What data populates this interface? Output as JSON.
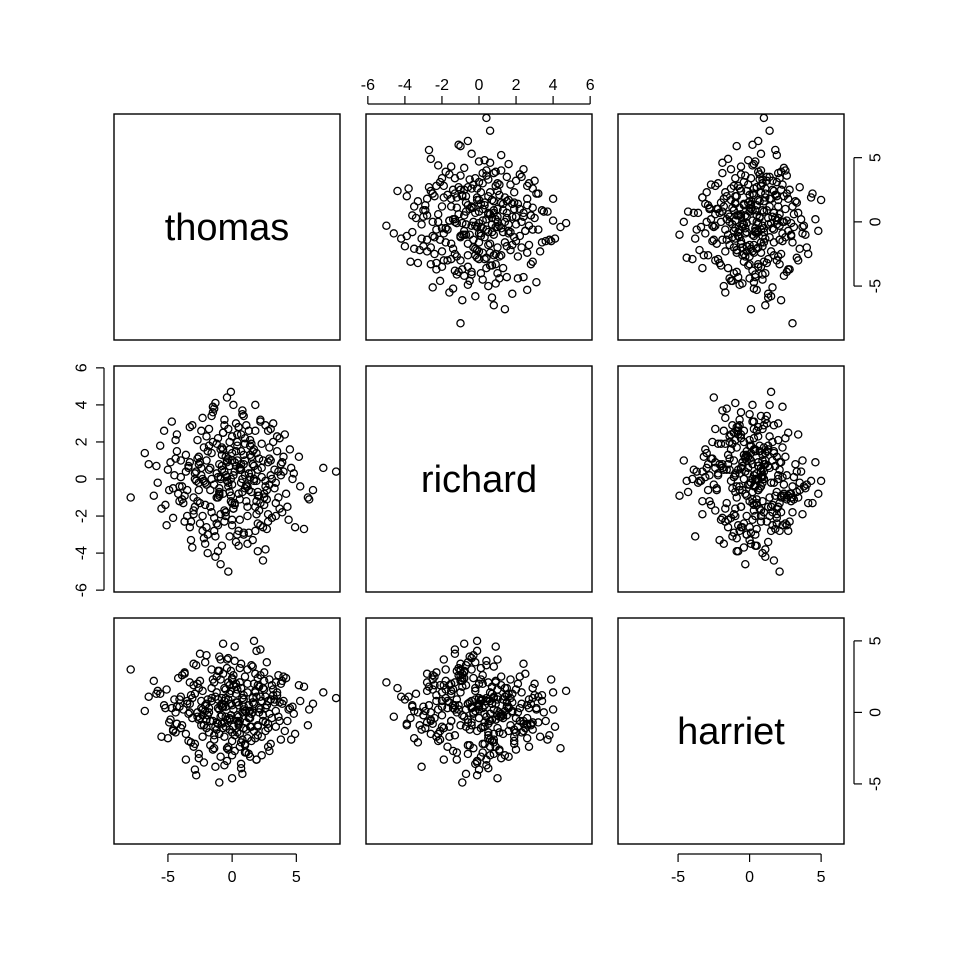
{
  "chart_data": {
    "type": "scatter",
    "variables": [
      "thomas",
      "richard",
      "harriet"
    ],
    "axes": {
      "thomas": {
        "range": [
          -9.2,
          8.4
        ],
        "ticks": [
          -5,
          0,
          5
        ],
        "tick_labels": [
          "-5",
          "0",
          "5"
        ],
        "shown_on": "bottom"
      },
      "richard": {
        "range": [
          -6.1,
          6.1
        ],
        "ticks": [
          -6,
          -4,
          -2,
          0,
          2,
          4,
          6
        ],
        "tick_labels": [
          "-6",
          "-4",
          "-2",
          "0",
          "2",
          "4",
          "6"
        ],
        "shown_on": "top and left"
      },
      "harriet": {
        "range": [
          -9.2,
          6.6
        ],
        "ticks": [
          -5,
          0,
          5
        ],
        "tick_labels": [
          "-5",
          "0",
          "5"
        ],
        "shown_on": "right and bottom"
      }
    },
    "grid": false,
    "legend": "none",
    "marker": "open circle",
    "points": [
      [
        -0.1,
        0.0,
        0.6
      ],
      [
        2.6,
        -0.1,
        -1.3
      ],
      [
        0.6,
        0.5,
        2.1
      ],
      [
        -2.0,
        1.0,
        -1.1
      ],
      [
        1.2,
        -1.5,
        2.0
      ],
      [
        4.0,
        0.4,
        0.8
      ],
      [
        -1.5,
        2.0,
        -2.6
      ],
      [
        0.0,
        -1.3,
        0.5
      ],
      [
        -3.3,
        0.9,
        2.1
      ],
      [
        2.8,
        2.6,
        -0.8
      ],
      [
        -0.6,
        -2.3,
        -1.7
      ],
      [
        1.6,
        0.8,
        3.2
      ],
      [
        -2.6,
        -0.6,
        -0.5
      ],
      [
        0.9,
        3.4,
        1.2
      ],
      [
        3.4,
        -2.0,
        -1.0
      ],
      [
        -4.1,
        -1.2,
        0.9
      ],
      [
        -0.9,
        1.6,
        -3.1
      ],
      [
        2.0,
        -0.9,
        2.4
      ],
      [
        -1.2,
        0.3,
        -0.7
      ],
      [
        0.4,
        -3.0,
        -0.2
      ],
      [
        5.2,
        1.2,
        1.9
      ],
      [
        -5.0,
        0.5,
        -1.8
      ],
      [
        1.0,
        1.9,
        -2.2
      ],
      [
        -0.3,
        -0.4,
        3.8
      ],
      [
        2.2,
        3.1,
        0.2
      ],
      [
        -2.3,
        -2.8,
        1.5
      ],
      [
        0.7,
        -0.2,
        -3.6
      ],
      [
        -1.8,
        2.7,
        0.3
      ],
      [
        3.6,
        -1.0,
        2.6
      ],
      [
        -3.0,
        -1.7,
        -2.4
      ],
      [
        1.4,
        1.3,
        -0.4
      ],
      [
        -0.5,
        -1.8,
        1.0
      ],
      [
        4.6,
        0.6,
        -1.9
      ],
      [
        -4.4,
        2.1,
        0.0
      ],
      [
        0.2,
        0.9,
        4.6
      ],
      [
        2.4,
        -2.6,
        -0.6
      ],
      [
        -1.0,
        -0.8,
        2.9
      ],
      [
        1.8,
        4.0,
        1.4
      ],
      [
        -2.9,
        0.0,
        -4.0
      ],
      [
        0.0,
        2.3,
        -1.4
      ],
      [
        3.0,
        1.0,
        0.9
      ],
      [
        -0.8,
        -3.6,
        0.4
      ],
      [
        -6.1,
        -0.9,
        2.2
      ],
      [
        1.1,
        -1.2,
        -2.8
      ],
      [
        -1.6,
        1.4,
        1.7
      ],
      [
        2.9,
        -0.3,
        -0.1
      ],
      [
        -3.7,
        -2.3,
        2.8
      ],
      [
        0.5,
        2.8,
        -0.9
      ],
      [
        -2.1,
        -0.2,
        3.5
      ],
      [
        1.9,
        -1.9,
        -3.3
      ],
      [
        -0.2,
        0.7,
        -0.5
      ],
      [
        6.3,
        -0.6,
        0.6
      ],
      [
        -5.6,
        1.8,
        1.3
      ],
      [
        1.3,
        -2.9,
        0.1
      ],
      [
        -1.4,
        3.8,
        -1.6
      ],
      [
        3.8,
        0.2,
        2.0
      ],
      [
        -2.7,
        1.1,
        -0.3
      ],
      [
        0.8,
        -0.7,
        -4.3
      ],
      [
        -0.7,
        2.5,
        2.7
      ],
      [
        2.6,
        -3.8,
        1.1
      ],
      [
        -4.6,
        -0.5,
        -1.2
      ],
      [
        0.3,
        1.5,
        0.7
      ],
      [
        1.7,
        -0.1,
        5.0
      ],
      [
        -1.1,
        -2.5,
        -0.8
      ],
      [
        3.2,
        2.0,
        1.6
      ],
      [
        -3.4,
        0.7,
        -2.0
      ],
      [
        0.1,
        -1.6,
        1.9
      ],
      [
        -0.4,
        4.4,
        -2.5
      ],
      [
        2.1,
        1.1,
        0.0
      ],
      [
        -2.5,
        -1.3,
        4.1
      ],
      [
        1.5,
        0.3,
        -1.0
      ],
      [
        -1.9,
        -4.0,
        0.9
      ],
      [
        4.3,
        -1.5,
        -0.6
      ],
      [
        -0.9,
        0.1,
        2.3
      ],
      [
        0.6,
        -2.2,
        -1.5
      ],
      [
        -3.1,
        2.9,
        1.0
      ],
      [
        2.3,
        0.6,
        -3.0
      ],
      [
        -5.2,
        -1.4,
        0.3
      ],
      [
        1.0,
        2.2,
        2.5
      ],
      [
        -0.1,
        -0.9,
        -0.2
      ],
      [
        3.5,
        1.5,
        1.2
      ],
      [
        -1.3,
        -3.1,
        -3.8
      ],
      [
        0.9,
        0.8,
        0.2
      ],
      [
        -2.2,
        1.7,
        -0.9
      ],
      [
        5.6,
        -2.7,
        1.8
      ],
      [
        -4.0,
        0.1,
        -1.1
      ],
      [
        1.2,
        -0.4,
        3.0
      ],
      [
        -0.6,
        3.2,
        -0.7
      ],
      [
        2.7,
        -1.1,
        0.5
      ],
      [
        -1.7,
        -0.6,
        -2.3
      ],
      [
        0.4,
        1.0,
        1.6
      ],
      [
        -3.5,
        -2.0,
        0.8
      ],
      [
        1.8,
        2.6,
        -1.8
      ],
      [
        -0.3,
        -5.0,
        2.1
      ],
      [
        3.1,
        0.0,
        -0.4
      ],
      [
        -2.0,
        2.3,
        0.6
      ],
      [
        0.2,
        -1.4,
        -2.7
      ],
      [
        -6.5,
        0.8,
        1.1
      ],
      [
        2.5,
        -0.8,
        2.8
      ],
      [
        -0.8,
        1.3,
        -0.2
      ],
      [
        1.6,
        -3.3,
        0.0
      ],
      [
        -2.8,
        0.4,
        3.3
      ],
      [
        4.1,
        2.4,
        -1.3
      ],
      [
        -1.2,
        -1.0,
        1.4
      ],
      [
        0.7,
        0.5,
        -3.9
      ],
      [
        -4.3,
        1.5,
        0.4
      ],
      [
        2.0,
        -2.4,
        1.9
      ],
      [
        -0.5,
        0.2,
        -1.0
      ],
      [
        3.3,
        -0.5,
        0.7
      ],
      [
        -1.5,
        3.6,
        -0.6
      ],
      [
        0.0,
        -0.3,
        2.4
      ],
      [
        -3.2,
        -3.3,
        -2.1
      ],
      [
        1.4,
        1.8,
        0.1
      ],
      [
        -0.9,
        -1.9,
        3.7
      ],
      [
        2.8,
        0.9,
        -2.4
      ],
      [
        -2.4,
        0.6,
        0.8
      ],
      [
        0.5,
        -2.8,
        -0.7
      ],
      [
        -5.8,
        -0.2,
        1.5
      ],
      [
        1.1,
        2.9,
        -1.2
      ],
      [
        -1.0,
        -0.7,
        0.2
      ],
      [
        3.9,
        -1.8,
        2.2
      ],
      [
        -2.6,
        1.2,
        -3.2
      ],
      [
        0.8,
        0.0,
        1.0
      ],
      [
        -0.2,
        2.0,
        -0.4
      ],
      [
        2.2,
        -1.3,
        4.4
      ],
      [
        -3.9,
        -0.4,
        -0.9
      ],
      [
        1.7,
        0.7,
        0.6
      ],
      [
        -1.4,
        -2.1,
        -1.9
      ],
      [
        0.3,
        3.0,
        2.0
      ],
      [
        4.8,
        0.3,
        -0.1
      ],
      [
        -2.9,
        -1.5,
        1.3
      ],
      [
        1.3,
        -0.6,
        -2.9
      ],
      [
        -0.7,
        1.6,
        0.4
      ],
      [
        2.4,
        -4.4,
        1.7
      ],
      [
        -4.8,
        0.9,
        -0.5
      ],
      [
        0.6,
        -1.1,
        3.1
      ],
      [
        -1.8,
        0.5,
        -1.4
      ],
      [
        3.0,
        2.7,
        0.9
      ],
      [
        -0.4,
        -0.1,
        -3.4
      ],
      [
        1.9,
        1.4,
        1.1
      ],
      [
        -3.3,
        -2.6,
        0.0
      ],
      [
        0.1,
        0.2,
        2.6
      ],
      [
        -2.3,
        3.3,
        -1.7
      ],
      [
        2.6,
        -0.4,
        0.3
      ],
      [
        -1.1,
        -3.9,
        -0.8
      ],
      [
        7.1,
        0.6,
        1.4
      ],
      [
        -4.2,
        -0.8,
        2.4
      ],
      [
        1.5,
        1.9,
        -2.0
      ],
      [
        -0.6,
        -1.7,
        0.8
      ],
      [
        3.6,
        0.4,
        -0.3
      ],
      [
        -2.0,
        -0.3,
        4.0
      ],
      [
        0.9,
        -2.9,
        -1.1
      ],
      [
        -5.3,
        2.6,
        0.5
      ],
      [
        2.1,
        -0.9,
        1.8
      ],
      [
        -0.3,
        1.1,
        -2.6
      ],
      [
        4.4,
        -2.2,
        0.2
      ],
      [
        -1.6,
        0.0,
        1.0
      ],
      [
        0.4,
        2.4,
        -0.6
      ],
      [
        -3.0,
        -1.0,
        3.4
      ],
      [
        1.2,
        -3.5,
        -1.8
      ],
      [
        -0.8,
        0.7,
        0.6
      ],
      [
        2.9,
        1.7,
        2.3
      ],
      [
        -2.5,
        -2.4,
        -0.4
      ],
      [
        0.0,
        1.0,
        -4.6
      ],
      [
        -4.5,
        0.2,
        0.9
      ],
      [
        1.8,
        -1.5,
        1.5
      ],
      [
        -1.3,
        4.1,
        -1.0
      ],
      [
        3.4,
        -0.2,
        0.1
      ],
      [
        -0.1,
        -1.2,
        2.9
      ],
      [
        -3.6,
        1.3,
        -1.5
      ],
      [
        2.3,
        0.1,
        0.8
      ],
      [
        -1.9,
        -3.0,
        -0.2
      ],
      [
        0.7,
        1.5,
        1.7
      ],
      [
        5.9,
        -1.0,
        -0.9
      ],
      [
        -2.7,
        2.1,
        2.0
      ],
      [
        1.0,
        -0.5,
        -2.3
      ],
      [
        -0.5,
        -2.0,
        0.4
      ],
      [
        3.2,
        3.0,
        1.2
      ],
      [
        -4.9,
        -0.6,
        -0.7
      ],
      [
        0.2,
        0.4,
        3.6
      ],
      [
        -1.2,
        1.9,
        -1.2
      ],
      [
        2.7,
        -2.7,
        0.5
      ],
      [
        -2.2,
        -0.1,
        -3.5
      ],
      [
        1.6,
        0.8,
        1.0
      ],
      [
        -0.9,
        -4.6,
        -0.3
      ],
      [
        4.0,
        1.2,
        2.5
      ],
      [
        -3.8,
        -1.3,
        0.2
      ],
      [
        0.5,
        2.8,
        -0.8
      ],
      [
        -0.2,
        -0.7,
        1.9
      ],
      [
        2.0,
        0.5,
        -1.6
      ],
      [
        -1.6,
        -1.8,
        3.0
      ],
      [
        0.8,
        3.5,
        0.0
      ],
      [
        -2.9,
        0.3,
        -2.2
      ],
      [
        3.7,
        -1.6,
        0.7
      ],
      [
        -0.4,
        0.9,
        -0.5
      ],
      [
        -5.1,
        -2.5,
        1.6
      ],
      [
        1.4,
        0.1,
        -3.1
      ],
      [
        -1.1,
        2.2,
        0.3
      ],
      [
        2.5,
        -1.0,
        2.2
      ],
      [
        -3.4,
        0.6,
        -0.1
      ],
      [
        0.3,
        -3.4,
        1.3
      ],
      [
        1.7,
        1.6,
        -1.3
      ],
      [
        -0.7,
        -0.8,
        4.8
      ],
      [
        -2.4,
        2.6,
        -0.9
      ],
      [
        4.7,
        0.0,
        0.4
      ],
      [
        0.0,
        -2.2,
        -2.0
      ],
      [
        -4.0,
        1.0,
        1.1
      ],
      [
        1.1,
        -0.3,
        0.0
      ],
      [
        -1.5,
        3.9,
        2.3
      ],
      [
        2.8,
        -1.9,
        -1.1
      ],
      [
        -0.6,
        0.4,
        -3.7
      ],
      [
        3.5,
        2.3,
        1.4
      ],
      [
        -2.1,
        -1.4,
        0.5
      ],
      [
        0.6,
        0.6,
        -0.6
      ],
      [
        -6.8,
        1.4,
        0.1
      ],
      [
        2.2,
        -2.5,
        2.6
      ],
      [
        -1.0,
        0.8,
        -1.5
      ],
      [
        0.9,
        1.3,
        0.9
      ],
      [
        -3.1,
        -3.7,
        -0.4
      ],
      [
        1.5,
        -0.7,
        3.3
      ],
      [
        -0.3,
        2.7,
        -2.4
      ],
      [
        3.9,
        0.9,
        0.6
      ],
      [
        -2.6,
        -0.2,
        1.7
      ],
      [
        0.1,
        -1.6,
        -1.0
      ],
      [
        -4.7,
        3.1,
        0.3
      ],
      [
        2.4,
        1.0,
        -0.2
      ],
      [
        -1.4,
        -2.8,
        2.1
      ],
      [
        1.0,
        0.2,
        -2.8
      ],
      [
        -0.8,
        1.7,
        1.0
      ],
      [
        2.0,
        -3.9,
        -0.9
      ],
      [
        -3.7,
        -0.9,
        2.7
      ],
      [
        0.4,
        2.0,
        -1.4
      ],
      [
        5.3,
        -0.4,
        0.8
      ],
      [
        -1.7,
        0.6,
        -0.6
      ],
      [
        -0.1,
        4.7,
        1.5
      ],
      [
        1.9,
        -1.2,
        -3.3
      ],
      [
        -2.3,
        0.0,
        0.2
      ],
      [
        3.1,
        -2.1,
        1.9
      ],
      [
        -0.5,
        1.2,
        -0.3
      ],
      [
        -5.5,
        -1.6,
        -1.7
      ],
      [
        1.3,
        0.3,
        0.5
      ],
      [
        -1.0,
        -0.5,
        3.9
      ],
      [
        2.6,
        2.9,
        -0.7
      ],
      [
        -3.2,
        -2.3,
        1.2
      ],
      [
        0.7,
        0.8,
        -2.1
      ],
      [
        -1.8,
        1.8,
        0.0
      ],
      [
        4.2,
        -0.8,
        2.4
      ],
      [
        -0.2,
        -3.1,
        -1.2
      ],
      [
        1.6,
        1.5,
        0.7
      ],
      [
        -2.8,
        -0.1,
        -4.4
      ],
      [
        0.3,
        0.7,
        1.8
      ],
      [
        -4.3,
        2.4,
        -0.8
      ],
      [
        2.1,
        -1.7,
        0.3
      ],
      [
        -1.1,
        -1.0,
        2.9
      ],
      [
        0.8,
        3.7,
        -1.9
      ],
      [
        3.3,
        0.5,
        0.9
      ],
      [
        -2.0,
        -2.6,
        -0.5
      ],
      [
        -0.4,
        0.1,
        3.1
      ],
      [
        2.9,
        1.1,
        -2.7
      ],
      [
        -3.5,
        -0.6,
        0.6
      ],
      [
        1.2,
        -2.0,
        1.4
      ],
      [
        -0.7,
        2.5,
        -1.1
      ],
      [
        6.0,
        -1.1,
        0.2
      ],
      [
        -2.5,
        0.9,
        2.2
      ],
      [
        0.5,
        -0.8,
        -0.3
      ],
      [
        -1.3,
        -4.2,
        1.1
      ],
      [
        2.3,
        1.9,
        -1.7
      ],
      [
        -4.1,
        -0.4,
        0.4
      ],
      [
        0.0,
        1.4,
        -3.0
      ],
      [
        1.8,
        -2.8,
        2.7
      ],
      [
        -0.9,
        0.0,
        0.5
      ],
      [
        3.7,
        2.2,
        -0.6
      ],
      [
        -3.0,
        -1.9,
        1.9
      ],
      [
        0.6,
        0.6,
        -2.4
      ],
      [
        -1.6,
        3.4,
        0.8
      ],
      [
        2.7,
        -0.6,
        3.5
      ],
      [
        -2.2,
        -3.2,
        -0.9
      ],
      [
        1.0,
        1.0,
        0.1
      ],
      [
        -5.9,
        0.7,
        1.3
      ],
      [
        0.2,
        -1.3,
        -1.6
      ],
      [
        4.5,
        1.6,
        0.3
      ],
      [
        -1.2,
        -2.4,
        2.5
      ],
      [
        1.4,
        2.1,
        -1.0
      ],
      [
        -0.3,
        -0.2,
        0.9
      ],
      [
        -3.6,
        0.4,
        -3.3
      ],
      [
        2.5,
        -1.4,
        1.6
      ],
      [
        -1.9,
        1.5,
        -0.2
      ],
      [
        0.9,
        -3.0,
        0.4
      ],
      [
        3.0,
        0.2,
        -2.2
      ],
      [
        -0.6,
        2.9,
        1.7
      ],
      [
        -2.7,
        -1.2,
        0.0
      ],
      [
        1.7,
        0.0,
        2.0
      ],
      [
        -4.6,
        -2.1,
        -1.3
      ],
      [
        0.4,
        1.8,
        0.7
      ],
      [
        -1.0,
        -0.9,
        -4.9
      ],
      [
        2.2,
        3.2,
        1.1
      ],
      [
        -2.4,
        0.2,
        0.3
      ],
      [
        -7.9,
        -1.0,
        3.0
      ],
      [
        1.1,
        -0.4,
        -0.7
      ],
      [
        -0.5,
        -1.8,
        1.6
      ],
      [
        3.8,
        0.8,
        -1.9
      ],
      [
        -3.3,
        2.8,
        0.6
      ],
      [
        0.0,
        -2.5,
        2.3
      ],
      [
        1.5,
        1.2,
        -0.1
      ],
      [
        -1.4,
        -0.3,
        -2.5
      ],
      [
        8.1,
        0.4,
        1.0
      ],
      [
        -2.1,
        -3.5,
        0.1
      ],
      [
        0.7,
        2.4,
        3.4
      ],
      [
        -0.8,
        0.5,
        -0.8
      ],
      [
        2.8,
        -2.3,
        0.8
      ],
      [
        -4.4,
        1.1,
        -1.4
      ],
      [
        1.9,
        -0.1,
        4.3
      ],
      [
        -1.7,
        -1.5,
        -0.6
      ],
      [
        0.1,
        4.0,
        0.2
      ],
      [
        3.4,
        -1.3,
        2.1
      ],
      [
        -2.6,
        0.8,
        -2.9
      ],
      [
        0.5,
        -3.6,
        0.5
      ],
      [
        -0.2,
        1.6,
        1.3
      ],
      [
        2.0,
        -0.7,
        -1.0
      ],
      [
        -3.9,
        -1.1,
        2.6
      ],
      [
        1.3,
        2.6,
        -0.4
      ],
      [
        -1.1,
        0.1,
        0.9
      ],
      [
        4.9,
        -2.6,
        -1.5
      ],
      [
        -0.4,
        1.0,
        3.7
      ],
      [
        -2.3,
        -2.0,
        -0.2
      ]
    ]
  }
}
